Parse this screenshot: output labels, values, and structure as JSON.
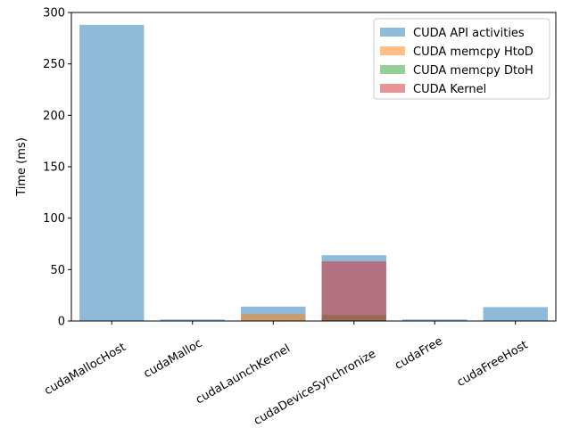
{
  "chart_data": {
    "type": "bar",
    "title": "",
    "xlabel": "",
    "ylabel": "Time (ms)",
    "ylim": [
      0,
      300
    ],
    "yticks": [
      "0",
      "50",
      "100",
      "150",
      "200",
      "250",
      "300"
    ],
    "categories": [
      "cudaMallocHost",
      "cudaMalloc",
      "cudaLaunchKernel",
      "cudaDeviceSynchronize",
      "cudaFree",
      "cudaFreeHost"
    ],
    "legend_position": "top-right",
    "grid": false,
    "series": [
      {
        "name": "CUDA API activities",
        "color": "#1f77b4",
        "values": [
          288,
          1.5,
          14,
          64,
          1.5,
          13.5
        ]
      },
      {
        "name": "CUDA memcpy HtoD",
        "color": "#ff7f0e",
        "values": [
          0,
          0,
          7,
          0,
          0,
          0
        ]
      },
      {
        "name": "CUDA memcpy DtoH",
        "color": "#2ca02c",
        "values": [
          0,
          0,
          0,
          6,
          0,
          0
        ]
      },
      {
        "name": "CUDA Kernel",
        "color": "#d62728",
        "values": [
          0,
          0,
          0,
          58,
          0,
          0
        ]
      }
    ]
  }
}
